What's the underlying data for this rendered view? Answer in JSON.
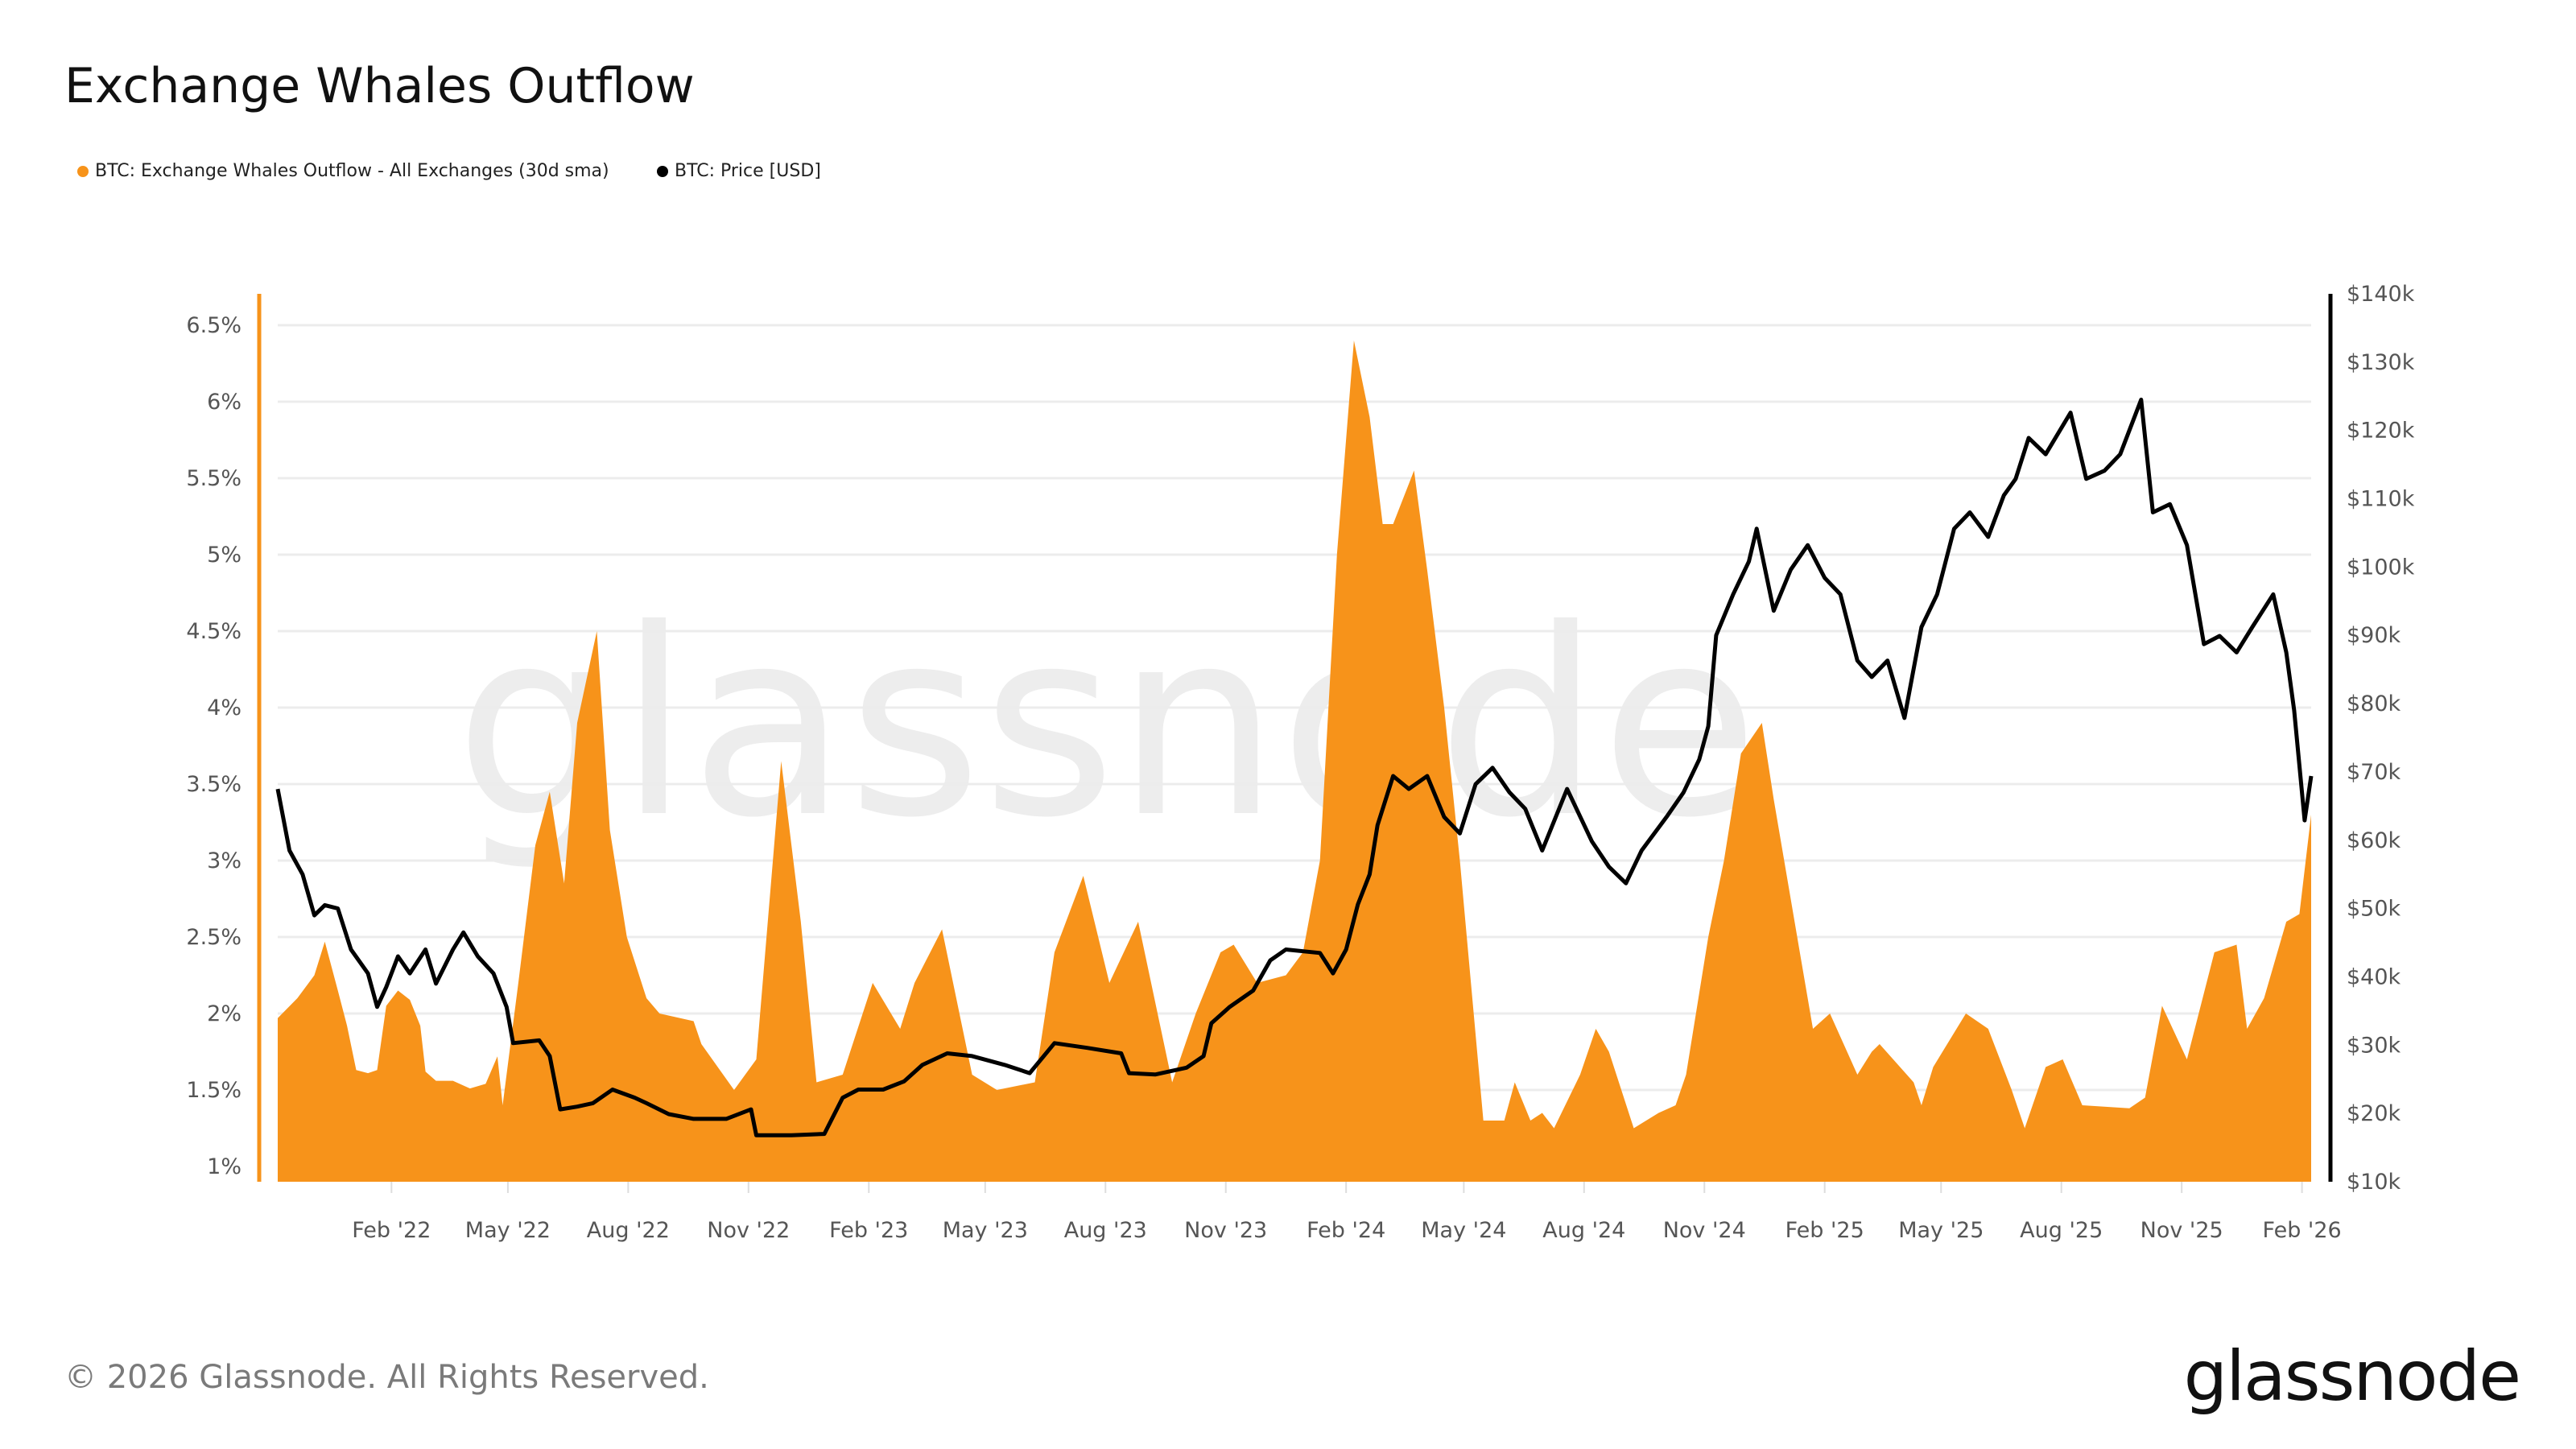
{
  "title": "Exchange Whales Outflow",
  "legend": [
    {
      "label": "BTC: Exchange Whales Outflow - All Exchanges (30d sma)",
      "color": "#f7931a"
    },
    {
      "label": "BTC: Price [USD]",
      "color": "#000000"
    }
  ],
  "footer": "© 2026 Glassnode. All Rights Reserved.",
  "logo": "glassnode",
  "watermark": "glassnode",
  "chart_data": {
    "type": "area+line",
    "title": "Exchange Whales Outflow",
    "grid": true,
    "legend_position": "top-left",
    "x_range": [
      "2021-11-06",
      "2026-02-08"
    ],
    "x_ticks": [
      {
        "date": "2022-02-01",
        "label": "Feb '22"
      },
      {
        "date": "2022-05-01",
        "label": "May '22"
      },
      {
        "date": "2022-08-01",
        "label": "Aug '22"
      },
      {
        "date": "2022-11-01",
        "label": "Nov '22"
      },
      {
        "date": "2023-02-01",
        "label": "Feb '23"
      },
      {
        "date": "2023-05-01",
        "label": "May '23"
      },
      {
        "date": "2023-08-01",
        "label": "Aug '23"
      },
      {
        "date": "2023-11-01",
        "label": "Nov '23"
      },
      {
        "date": "2024-02-01",
        "label": "Feb '24"
      },
      {
        "date": "2024-05-01",
        "label": "May '24"
      },
      {
        "date": "2024-08-01",
        "label": "Aug '24"
      },
      {
        "date": "2024-11-01",
        "label": "Nov '24"
      },
      {
        "date": "2025-02-01",
        "label": "Feb '25"
      },
      {
        "date": "2025-05-01",
        "label": "May '25"
      },
      {
        "date": "2025-08-01",
        "label": "Aug '25"
      },
      {
        "date": "2025-11-01",
        "label": "Nov '25"
      },
      {
        "date": "2026-02-01",
        "label": "Feb '26"
      }
    ],
    "y_left": {
      "color": "#f7931a",
      "ticks": [
        {
          "value": 1,
          "label": "1%"
        },
        {
          "value": 1.5,
          "label": "1.5%"
        },
        {
          "value": 2,
          "label": "2%"
        },
        {
          "value": 2.5,
          "label": "2.5%"
        },
        {
          "value": 3,
          "label": "3%"
        },
        {
          "value": 3.5,
          "label": "3.5%"
        },
        {
          "value": 4,
          "label": "4%"
        },
        {
          "value": 4.5,
          "label": "4.5%"
        },
        {
          "value": 5,
          "label": "5%"
        },
        {
          "value": 5.5,
          "label": "5.5%"
        },
        {
          "value": 6,
          "label": "6%"
        },
        {
          "value": 6.5,
          "label": "6.5%"
        }
      ]
    },
    "y_right": {
      "color": "#000000",
      "ticks": [
        {
          "value": 10,
          "label": "$10k"
        },
        {
          "value": 20,
          "label": "$20k"
        },
        {
          "value": 30,
          "label": "$30k"
        },
        {
          "value": 40,
          "label": "$40k"
        },
        {
          "value": 50,
          "label": "$50k"
        },
        {
          "value": 60,
          "label": "$60k"
        },
        {
          "value": 70,
          "label": "$70k"
        },
        {
          "value": 80,
          "label": "$80k"
        },
        {
          "value": 90,
          "label": "$90k"
        },
        {
          "value": 100,
          "label": "$100k"
        },
        {
          "value": 110,
          "label": "$110k"
        },
        {
          "value": 120,
          "label": "$120k"
        },
        {
          "value": 130,
          "label": "$130k"
        },
        {
          "value": 140,
          "label": "$140k"
        }
      ]
    },
    "series": [
      {
        "name": "BTC: Exchange Whales Outflow - All Exchanges (30d sma)",
        "type": "area",
        "axis": "left",
        "color": "#f7931a",
        "unit": "%",
        "points": [
          [
            "2021-11-06",
            1.97
          ],
          [
            "2021-11-21",
            2.1
          ],
          [
            "2021-12-04",
            2.25
          ],
          [
            "2021-12-12",
            2.47
          ],
          [
            "2021-12-22",
            2.15
          ],
          [
            "2021-12-29",
            1.92
          ],
          [
            "2022-01-05",
            1.63
          ],
          [
            "2022-01-14",
            1.61
          ],
          [
            "2022-01-21",
            1.63
          ],
          [
            "2022-01-28",
            2.05
          ],
          [
            "2022-02-06",
            2.15
          ],
          [
            "2022-02-15",
            2.09
          ],
          [
            "2022-02-23",
            1.92
          ],
          [
            "2022-02-27",
            1.62
          ],
          [
            "2022-03-07",
            1.56
          ],
          [
            "2022-03-20",
            1.56
          ],
          [
            "2022-04-02",
            1.51
          ],
          [
            "2022-04-14",
            1.54
          ],
          [
            "2022-04-23",
            1.72
          ],
          [
            "2022-04-27",
            1.4
          ],
          [
            "2022-05-09",
            2.2
          ],
          [
            "2022-05-22",
            3.1
          ],
          [
            "2022-06-02",
            3.45
          ],
          [
            "2022-06-13",
            2.85
          ],
          [
            "2022-06-23",
            3.9
          ],
          [
            "2022-07-08",
            4.5
          ],
          [
            "2022-07-18",
            3.2
          ],
          [
            "2022-07-31",
            2.5
          ],
          [
            "2022-08-15",
            2.1
          ],
          [
            "2022-08-25",
            2.0
          ],
          [
            "2022-09-20",
            1.95
          ],
          [
            "2022-09-26",
            1.8
          ],
          [
            "2022-10-21",
            1.5
          ],
          [
            "2022-11-07",
            1.7
          ],
          [
            "2022-11-26",
            3.65
          ],
          [
            "2022-12-11",
            2.6
          ],
          [
            "2022-12-23",
            1.55
          ],
          [
            "2023-01-12",
            1.6
          ],
          [
            "2023-02-04",
            2.2
          ],
          [
            "2023-02-25",
            1.9
          ],
          [
            "2023-03-08",
            2.2
          ],
          [
            "2023-03-29",
            2.55
          ],
          [
            "2023-04-21",
            1.6
          ],
          [
            "2023-05-10",
            1.5
          ],
          [
            "2023-06-08",
            1.55
          ],
          [
            "2023-06-23",
            2.4
          ],
          [
            "2023-07-15",
            2.9
          ],
          [
            "2023-08-04",
            2.2
          ],
          [
            "2023-08-26",
            2.6
          ],
          [
            "2023-09-21",
            1.55
          ],
          [
            "2023-10-09",
            2.0
          ],
          [
            "2023-10-28",
            2.4
          ],
          [
            "2023-11-07",
            2.45
          ],
          [
            "2023-11-25",
            2.2
          ],
          [
            "2023-12-17",
            2.25
          ],
          [
            "2023-12-30",
            2.4
          ],
          [
            "2024-01-12",
            3.0
          ],
          [
            "2024-01-25",
            5.0
          ],
          [
            "2024-02-07",
            6.4
          ],
          [
            "2024-02-19",
            5.9
          ],
          [
            "2024-02-29",
            5.2
          ],
          [
            "2024-03-08",
            5.2
          ],
          [
            "2024-03-24",
            5.55
          ],
          [
            "2024-04-03",
            4.9
          ],
          [
            "2024-04-16",
            4.0
          ],
          [
            "2024-04-28",
            3.0
          ],
          [
            "2024-05-16",
            1.3
          ],
          [
            "2024-06-01",
            1.3
          ],
          [
            "2024-06-09",
            1.55
          ],
          [
            "2024-06-21",
            1.3
          ],
          [
            "2024-06-30",
            1.35
          ],
          [
            "2024-07-09",
            1.25
          ],
          [
            "2024-07-29",
            1.6
          ],
          [
            "2024-08-10",
            1.9
          ],
          [
            "2024-08-20",
            1.75
          ],
          [
            "2024-09-08",
            1.25
          ],
          [
            "2024-09-27",
            1.35
          ],
          [
            "2024-10-10",
            1.4
          ],
          [
            "2024-10-18",
            1.6
          ],
          [
            "2024-11-04",
            2.5
          ],
          [
            "2024-11-16",
            3.0
          ],
          [
            "2024-11-29",
            3.7
          ],
          [
            "2024-12-15",
            3.9
          ],
          [
            "2024-12-24",
            3.4
          ],
          [
            "2025-01-13",
            2.4
          ],
          [
            "2025-01-23",
            1.9
          ],
          [
            "2025-02-05",
            2.0
          ],
          [
            "2025-02-26",
            1.6
          ],
          [
            "2025-03-09",
            1.75
          ],
          [
            "2025-03-15",
            1.8
          ],
          [
            "2025-04-10",
            1.55
          ],
          [
            "2025-04-16",
            1.4
          ],
          [
            "2025-04-25",
            1.65
          ],
          [
            "2025-05-20",
            2.0
          ],
          [
            "2025-06-06",
            1.9
          ],
          [
            "2025-06-24",
            1.5
          ],
          [
            "2025-07-04",
            1.25
          ],
          [
            "2025-07-20",
            1.65
          ],
          [
            "2025-08-02",
            1.7
          ],
          [
            "2025-08-17",
            1.4
          ],
          [
            "2025-09-22",
            1.38
          ],
          [
            "2025-10-04",
            1.45
          ],
          [
            "2025-10-17",
            2.05
          ],
          [
            "2025-11-05",
            1.7
          ],
          [
            "2025-11-26",
            2.4
          ],
          [
            "2025-12-13",
            2.45
          ],
          [
            "2025-12-21",
            1.9
          ],
          [
            "2026-01-03",
            2.1
          ],
          [
            "2026-01-20",
            2.6
          ],
          [
            "2026-01-30",
            2.65
          ],
          [
            "2026-02-08",
            3.3
          ]
        ]
      },
      {
        "name": "BTC: Price [USD]",
        "type": "line",
        "axis": "right",
        "color": "#000000",
        "unit": "$k",
        "points": [
          [
            "2021-11-06",
            67.5
          ],
          [
            "2021-11-15",
            58.5
          ],
          [
            "2021-11-25",
            55
          ],
          [
            "2021-12-04",
            49
          ],
          [
            "2021-12-12",
            50.5
          ],
          [
            "2021-12-22",
            50
          ],
          [
            "2022-01-01",
            44
          ],
          [
            "2022-01-14",
            40.5
          ],
          [
            "2022-01-21",
            35.6
          ],
          [
            "2022-01-28",
            38.5
          ],
          [
            "2022-02-06",
            43
          ],
          [
            "2022-02-15",
            40.5
          ],
          [
            "2022-02-27",
            44
          ],
          [
            "2022-03-07",
            39
          ],
          [
            "2022-03-20",
            44
          ],
          [
            "2022-03-28",
            46.5
          ],
          [
            "2022-04-08",
            43
          ],
          [
            "2022-04-20",
            40.5
          ],
          [
            "2022-04-30",
            35.6
          ],
          [
            "2022-05-05",
            30.3
          ],
          [
            "2022-05-25",
            30.7
          ],
          [
            "2022-06-02",
            28.4
          ],
          [
            "2022-06-10",
            20.6
          ],
          [
            "2022-06-23",
            21
          ],
          [
            "2022-07-05",
            21.5
          ],
          [
            "2022-07-20",
            23.5
          ],
          [
            "2022-08-06",
            22.3
          ],
          [
            "2022-08-15",
            21.5
          ],
          [
            "2022-09-01",
            19.9
          ],
          [
            "2022-09-20",
            19.2
          ],
          [
            "2022-10-15",
            19.2
          ],
          [
            "2022-11-03",
            20.6
          ],
          [
            "2022-11-07",
            16.8
          ],
          [
            "2022-12-04",
            16.8
          ],
          [
            "2022-12-29",
            17
          ],
          [
            "2023-01-12",
            22.3
          ],
          [
            "2023-01-24",
            23.5
          ],
          [
            "2023-02-12",
            23.5
          ],
          [
            "2023-02-28",
            24.7
          ],
          [
            "2023-03-14",
            27.1
          ],
          [
            "2023-04-02",
            28.8
          ],
          [
            "2023-04-21",
            28.4
          ],
          [
            "2023-05-16",
            27.1
          ],
          [
            "2023-06-04",
            25.9
          ],
          [
            "2023-06-23",
            30.3
          ],
          [
            "2023-07-18",
            29.6
          ],
          [
            "2023-08-13",
            28.8
          ],
          [
            "2023-08-19",
            25.9
          ],
          [
            "2023-09-08",
            25.7
          ],
          [
            "2023-10-02",
            26.7
          ],
          [
            "2023-10-15",
            28.4
          ],
          [
            "2023-10-21",
            33.2
          ],
          [
            "2023-11-04",
            35.6
          ],
          [
            "2023-11-22",
            38
          ],
          [
            "2023-12-05",
            42.4
          ],
          [
            "2023-12-17",
            44
          ],
          [
            "2024-01-12",
            43.5
          ],
          [
            "2024-01-22",
            40.5
          ],
          [
            "2024-02-01",
            44
          ],
          [
            "2024-02-10",
            50.6
          ],
          [
            "2024-02-19",
            55
          ],
          [
            "2024-02-25",
            62.2
          ],
          [
            "2024-03-08",
            69.4
          ],
          [
            "2024-03-20",
            67.5
          ],
          [
            "2024-04-03",
            69.4
          ],
          [
            "2024-04-16",
            63.4
          ],
          [
            "2024-04-28",
            61
          ],
          [
            "2024-05-10",
            68.2
          ],
          [
            "2024-05-23",
            70.6
          ],
          [
            "2024-06-05",
            67
          ],
          [
            "2024-06-17",
            64.6
          ],
          [
            "2024-06-30",
            58.5
          ],
          [
            "2024-07-19",
            67.5
          ],
          [
            "2024-08-07",
            59.8
          ],
          [
            "2024-08-20",
            56.1
          ],
          [
            "2024-09-02",
            53.7
          ],
          [
            "2024-09-14",
            58.5
          ],
          [
            "2024-10-03",
            63.4
          ],
          [
            "2024-10-16",
            67
          ],
          [
            "2024-10-28",
            71.8
          ],
          [
            "2024-11-04",
            76.7
          ],
          [
            "2024-11-10",
            90
          ],
          [
            "2024-11-23",
            96
          ],
          [
            "2024-12-05",
            100.8
          ],
          [
            "2024-12-11",
            105.6
          ],
          [
            "2024-12-24",
            93.6
          ],
          [
            "2025-01-06",
            99.6
          ],
          [
            "2025-01-19",
            103.2
          ],
          [
            "2025-02-01",
            98.4
          ],
          [
            "2025-02-13",
            96
          ],
          [
            "2025-02-26",
            86.3
          ],
          [
            "2025-03-09",
            83.9
          ],
          [
            "2025-03-21",
            86.3
          ],
          [
            "2025-04-03",
            77.9
          ],
          [
            "2025-04-16",
            91.2
          ],
          [
            "2025-04-28",
            96
          ],
          [
            "2025-05-11",
            105.6
          ],
          [
            "2025-05-23",
            108
          ],
          [
            "2025-06-06",
            104.4
          ],
          [
            "2025-06-18",
            110.5
          ],
          [
            "2025-06-27",
            112.9
          ],
          [
            "2025-07-07",
            118.9
          ],
          [
            "2025-07-20",
            116.5
          ],
          [
            "2025-08-08",
            122.6
          ],
          [
            "2025-08-20",
            112.9
          ],
          [
            "2025-09-03",
            114.1
          ],
          [
            "2025-09-15",
            116.5
          ],
          [
            "2025-10-01",
            124.5
          ],
          [
            "2025-10-10",
            108
          ],
          [
            "2025-10-23",
            109.2
          ],
          [
            "2025-11-05",
            103.2
          ],
          [
            "2025-11-18",
            88.7
          ],
          [
            "2025-11-30",
            89.9
          ],
          [
            "2025-12-13",
            87.5
          ],
          [
            "2025-12-25",
            91.2
          ],
          [
            "2026-01-10",
            96
          ],
          [
            "2026-01-20",
            87.5
          ],
          [
            "2026-01-26",
            79
          ],
          [
            "2026-02-03",
            62.9
          ],
          [
            "2026-02-08",
            69.4
          ]
        ]
      }
    ]
  }
}
